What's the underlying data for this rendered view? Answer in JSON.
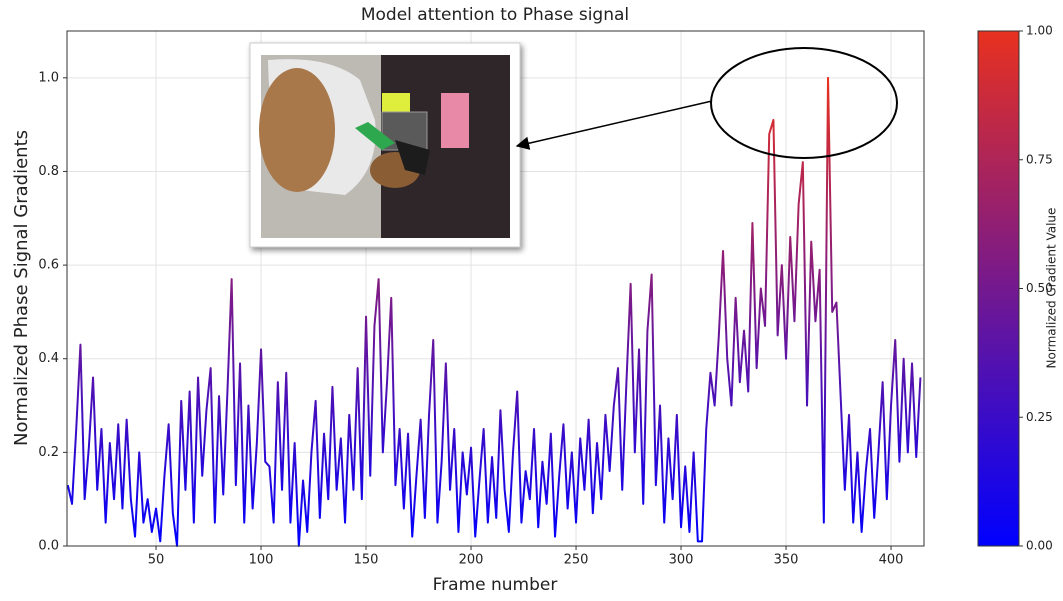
{
  "chart_data": {
    "type": "line",
    "title": "Model attention to Phase signal",
    "x_label": "Frame number",
    "y_label": "Normalized Phase Signal Gradients",
    "x": [
      8,
      10,
      12,
      14,
      16,
      18,
      20,
      22,
      24,
      26,
      28,
      30,
      32,
      34,
      36,
      38,
      40,
      42,
      44,
      46,
      48,
      50,
      52,
      54,
      56,
      58,
      60,
      62,
      64,
      66,
      68,
      70,
      72,
      74,
      76,
      78,
      80,
      82,
      84,
      86,
      88,
      90,
      92,
      94,
      96,
      98,
      100,
      102,
      104,
      106,
      108,
      110,
      112,
      114,
      116,
      118,
      120,
      122,
      124,
      126,
      128,
      130,
      132,
      134,
      136,
      138,
      140,
      142,
      144,
      146,
      148,
      150,
      152,
      154,
      156,
      158,
      160,
      162,
      164,
      166,
      168,
      170,
      172,
      174,
      176,
      178,
      180,
      182,
      184,
      186,
      188,
      190,
      192,
      194,
      196,
      198,
      200,
      202,
      204,
      206,
      208,
      210,
      212,
      214,
      216,
      218,
      220,
      222,
      224,
      226,
      228,
      230,
      232,
      234,
      236,
      238,
      240,
      242,
      244,
      246,
      248,
      250,
      252,
      254,
      256,
      258,
      260,
      262,
      264,
      266,
      268,
      270,
      272,
      274,
      276,
      278,
      280,
      282,
      284,
      286,
      288,
      290,
      292,
      294,
      296,
      298,
      300,
      302,
      304,
      306,
      308,
      310,
      312,
      314,
      316,
      318,
      320,
      322,
      324,
      326,
      328,
      330,
      332,
      334,
      336,
      338,
      340,
      342,
      344,
      346,
      348,
      350,
      352,
      354,
      356,
      358,
      360,
      362,
      364,
      366,
      368,
      370,
      372,
      374,
      376,
      378,
      380,
      382,
      384,
      386,
      388,
      390,
      392,
      394,
      396,
      398,
      400,
      402,
      404,
      406,
      408,
      410,
      412,
      414
    ],
    "values": [
      0.13,
      0.09,
      0.25,
      0.43,
      0.1,
      0.21,
      0.36,
      0.12,
      0.25,
      0.05,
      0.22,
      0.1,
      0.26,
      0.08,
      0.27,
      0.1,
      0.02,
      0.2,
      0.05,
      0.1,
      0.03,
      0.08,
      0.01,
      0.15,
      0.26,
      0.07,
      0.0,
      0.31,
      0.12,
      0.33,
      0.05,
      0.36,
      0.15,
      0.29,
      0.38,
      0.05,
      0.32,
      0.11,
      0.33,
      0.57,
      0.13,
      0.39,
      0.05,
      0.3,
      0.08,
      0.22,
      0.42,
      0.18,
      0.17,
      0.05,
      0.35,
      0.12,
      0.37,
      0.05,
      0.22,
      0.0,
      0.14,
      0.03,
      0.2,
      0.31,
      0.06,
      0.24,
      0.1,
      0.34,
      0.12,
      0.23,
      0.05,
      0.28,
      0.12,
      0.38,
      0.1,
      0.49,
      0.15,
      0.47,
      0.57,
      0.2,
      0.35,
      0.53,
      0.13,
      0.25,
      0.08,
      0.24,
      0.02,
      0.15,
      0.27,
      0.06,
      0.28,
      0.44,
      0.05,
      0.18,
      0.39,
      0.12,
      0.25,
      0.03,
      0.2,
      0.11,
      0.21,
      0.02,
      0.14,
      0.25,
      0.05,
      0.19,
      0.06,
      0.29,
      0.12,
      0.03,
      0.2,
      0.33,
      0.05,
      0.16,
      0.1,
      0.25,
      0.04,
      0.18,
      0.09,
      0.24,
      0.02,
      0.15,
      0.26,
      0.08,
      0.2,
      0.05,
      0.23,
      0.12,
      0.27,
      0.07,
      0.22,
      0.1,
      0.28,
      0.16,
      0.3,
      0.38,
      0.12,
      0.35,
      0.56,
      0.2,
      0.42,
      0.09,
      0.46,
      0.58,
      0.13,
      0.3,
      0.05,
      0.23,
      0.1,
      0.28,
      0.04,
      0.17,
      0.03,
      0.2,
      0.01,
      0.01,
      0.25,
      0.37,
      0.3,
      0.45,
      0.63,
      0.4,
      0.3,
      0.53,
      0.35,
      0.46,
      0.33,
      0.69,
      0.38,
      0.55,
      0.47,
      0.88,
      0.91,
      0.45,
      0.6,
      0.4,
      0.66,
      0.48,
      0.73,
      0.82,
      0.3,
      0.65,
      0.48,
      0.59,
      0.05,
      1.0,
      0.5,
      0.52,
      0.32,
      0.12,
      0.28,
      0.05,
      0.2,
      0.03,
      0.16,
      0.25,
      0.06,
      0.2,
      0.35,
      0.1,
      0.3,
      0.44,
      0.18,
      0.4,
      0.2,
      0.39,
      0.19,
      0.36
    ],
    "colormap": [
      "#0000ff",
      "#e8311f"
    ],
    "xlim": [
      7.6,
      415.7
    ],
    "xticks": [
      50,
      100,
      150,
      200,
      250,
      300,
      350,
      400
    ],
    "ylim": [
      0,
      1.1
    ],
    "yticks": [
      {
        "value": 0,
        "label": "0.0"
      },
      0.2,
      0.4,
      0.6,
      0.8,
      {
        "value": 1,
        "label": "1.0"
      }
    ],
    "grid": true,
    "colorbar": {
      "label": "Normalized Gradient Value",
      "clim": [
        0,
        1
      ],
      "ticks": [
        {
          "value": 0,
          "label": "0.00"
        },
        {
          "value": 0.25,
          "label": "0.25"
        },
        {
          "value": 0.5,
          "label": "0.50"
        },
        {
          "value": 0.75,
          "label": "0.75"
        },
        {
          "value": 1,
          "label": "1.00"
        }
      ]
    }
  }
}
